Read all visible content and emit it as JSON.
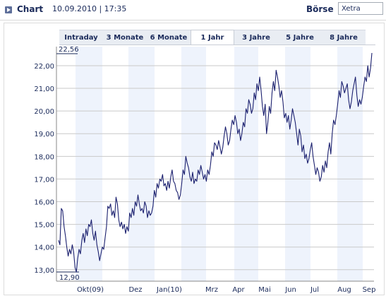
{
  "header": {
    "title": "Chart",
    "datetime": "10.09.2010 | 17:35",
    "exchange_label": "Börse",
    "exchange_value": "Xetra",
    "icon": "arrow-right-icon"
  },
  "tabs": [
    {
      "label": "Intraday",
      "active": false
    },
    {
      "label": "3 Monate",
      "active": false
    },
    {
      "label": "6 Monate",
      "active": false
    },
    {
      "label": "1 Jahr",
      "active": true
    },
    {
      "label": "3 Jahre",
      "active": false
    },
    {
      "label": "5 Jahre",
      "active": false
    },
    {
      "label": "8 Jahre",
      "active": false
    }
  ],
  "chart_data": {
    "type": "line",
    "ylim": [
      12.9,
      22.56
    ],
    "yticks": [
      13,
      14,
      15,
      16,
      17,
      18,
      19,
      20,
      21,
      22
    ],
    "ytick_labels": [
      "13,00",
      "14,00",
      "15,00",
      "16,00",
      "17,00",
      "18,00",
      "19,00",
      "20,00",
      "21,00",
      "22,00"
    ],
    "max_label": "22,56",
    "min_label": "12,90",
    "xticks": [
      "Okt(09)",
      "Dez",
      "Jan(10)",
      "Mrz",
      "Apr",
      "Mai",
      "Jun",
      "Jul",
      "Aug",
      "Sep"
    ],
    "line_color": "#1a1f6e",
    "band_color": "#eef3fc",
    "series": [
      {
        "values": [
          14.3,
          14.1,
          15.7,
          15.6,
          14.9,
          14.5,
          14.0,
          13.6,
          13.9,
          13.7,
          14.1,
          13.8,
          13.1,
          12.9,
          13.5,
          13.9,
          13.7,
          14.3,
          14.6,
          14.2,
          14.8,
          14.5,
          15.0,
          14.9,
          15.2,
          14.6,
          14.3,
          14.7,
          14.1,
          13.8,
          13.4,
          13.7,
          14.0,
          13.9,
          14.4,
          14.9,
          15.8,
          15.7,
          15.9,
          15.4,
          15.6,
          15.3,
          16.2,
          15.9,
          15.2,
          14.9,
          15.1,
          14.8,
          15.0,
          14.6,
          14.9,
          14.7,
          15.5,
          15.3,
          15.7,
          15.4,
          16.0,
          15.8,
          16.3,
          15.9,
          15.6,
          15.7,
          15.5,
          16.0,
          15.8,
          15.3,
          15.6,
          15.4,
          15.5,
          15.8,
          16.5,
          16.2,
          16.8,
          16.6,
          17.0,
          16.9,
          17.2,
          16.7,
          16.8,
          16.5,
          16.9,
          16.6,
          17.1,
          17.4,
          16.9,
          16.8,
          16.5,
          16.4,
          16.1,
          16.3,
          16.8,
          17.4,
          17.2,
          18.0,
          17.7,
          17.5,
          17.1,
          16.9,
          17.3,
          16.8,
          17.0,
          16.9,
          17.4,
          17.2,
          17.6,
          17.3,
          17.0,
          17.2,
          16.9,
          17.4,
          17.2,
          17.6,
          18.2,
          18.0,
          18.6,
          18.5,
          18.3,
          18.7,
          18.4,
          18.1,
          18.4,
          18.9,
          19.3,
          19.0,
          18.5,
          18.7,
          19.2,
          19.6,
          19.4,
          19.8,
          19.5,
          19.0,
          19.2,
          18.7,
          19.0,
          19.5,
          19.3,
          20.1,
          19.9,
          20.5,
          20.3,
          19.9,
          20.1,
          20.8,
          20.5,
          21.2,
          20.9,
          21.5,
          20.9,
          20.2,
          19.8,
          20.3,
          19.0,
          19.5,
          20.2,
          19.9,
          20.8,
          21.3,
          20.9,
          21.8,
          21.5,
          21.1,
          20.6,
          20.9,
          20.4,
          19.7,
          19.9,
          19.5,
          19.8,
          19.2,
          19.6,
          20.1,
          19.8,
          19.5,
          19.0,
          18.5,
          19.2,
          18.9,
          18.2,
          18.5,
          17.9,
          18.1,
          17.7,
          17.9,
          18.3,
          18.6,
          18.0,
          17.6,
          17.2,
          17.5,
          17.3,
          16.9,
          17.1,
          17.6,
          17.3,
          17.8,
          17.5,
          18.2,
          18.6,
          18.1,
          19.0,
          19.6,
          19.4,
          19.8,
          20.3,
          20.9,
          20.6,
          21.3,
          21.1,
          20.8,
          21.0,
          21.2,
          20.5,
          20.1,
          20.4,
          20.9,
          21.2,
          21.5,
          20.7,
          20.2,
          20.5,
          20.3,
          20.6,
          21.1,
          21.5,
          21.3,
          22.0,
          21.5,
          21.9,
          22.56
        ]
      }
    ]
  }
}
